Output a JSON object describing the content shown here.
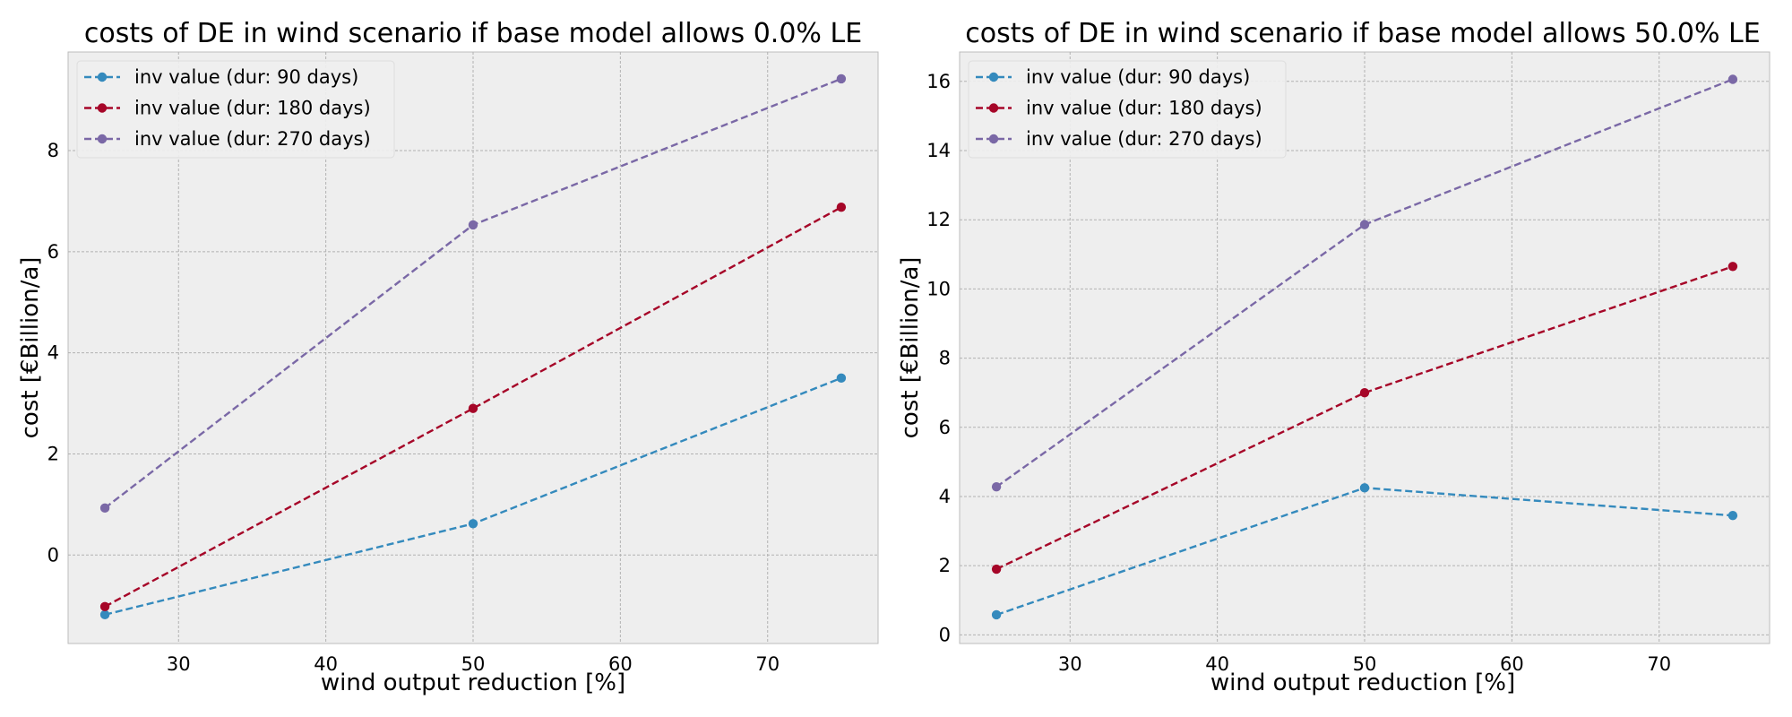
{
  "colors": {
    "background": "#ffffff",
    "plot_background": "#eeeeee",
    "grid": "#b2b2b2",
    "series": [
      "#348abd",
      "#a60628",
      "#7a68a6"
    ]
  },
  "chart_data": [
    {
      "type": "line",
      "title": "costs of DE in wind scenario if base model allows 0.0% LE",
      "xlabel": "wind output reduction [%]",
      "ylabel": "cost [€Billion/a]",
      "x": [
        25,
        50,
        75
      ],
      "xlim": [
        22.5,
        77.5
      ],
      "ylim": [
        -1.75,
        9.95
      ],
      "xticks": [
        30,
        40,
        50,
        60,
        70
      ],
      "yticks": [
        0,
        2,
        4,
        6,
        8
      ],
      "grid": true,
      "legend_position": "top-left",
      "line_style": "dashed",
      "marker": "circle",
      "series": [
        {
          "name": "inv value (dur: 90 days)",
          "values": [
            -1.18,
            0.62,
            3.5
          ]
        },
        {
          "name": "inv value (dur: 180 days)",
          "values": [
            -1.02,
            2.9,
            6.88
          ]
        },
        {
          "name": "inv value (dur: 270 days)",
          "values": [
            0.93,
            6.53,
            9.42
          ]
        }
      ]
    },
    {
      "type": "line",
      "title": "costs of DE in wind scenario if base model allows 50.0% LE",
      "xlabel": "wind output reduction [%]",
      "ylabel": "cost [€Billion/a]",
      "x": [
        25,
        50,
        75
      ],
      "xlim": [
        22.5,
        77.5
      ],
      "ylim": [
        -0.25,
        16.85
      ],
      "xticks": [
        30,
        40,
        50,
        60,
        70
      ],
      "yticks": [
        0,
        2,
        4,
        6,
        8,
        10,
        12,
        14,
        16
      ],
      "grid": true,
      "legend_position": "top-left",
      "line_style": "dashed",
      "marker": "circle",
      "series": [
        {
          "name": "inv value (dur: 90 days)",
          "values": [
            0.58,
            4.25,
            3.45
          ]
        },
        {
          "name": "inv value (dur: 180 days)",
          "values": [
            1.9,
            7.0,
            10.65
          ]
        },
        {
          "name": "inv value (dur: 270 days)",
          "values": [
            4.28,
            11.86,
            16.06
          ]
        }
      ]
    }
  ]
}
